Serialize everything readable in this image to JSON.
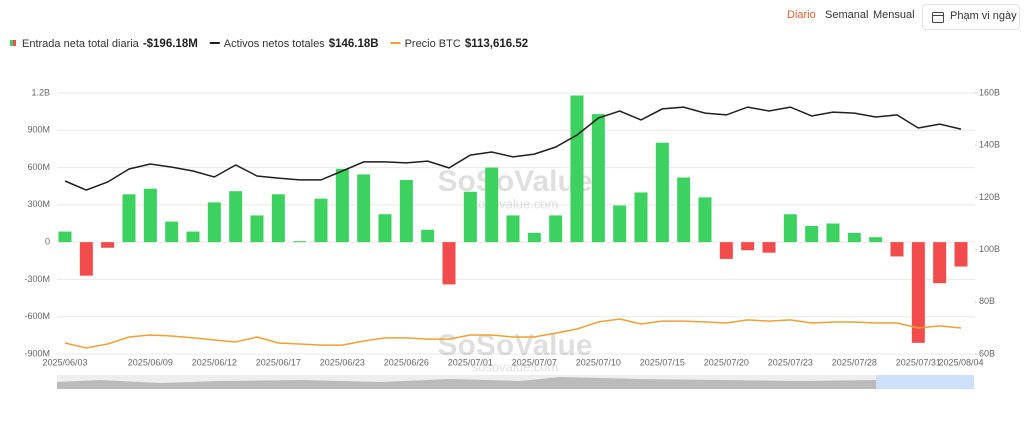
{
  "tabs": [
    "Diario",
    "Semanal",
    "Mensual"
  ],
  "date_range": "Phạm vi ngày",
  "watermark": {
    "brand": "SoSoValue",
    "site": "sosovalue.com"
  },
  "chart_data": {
    "type": "bar",
    "categories": [
      "2025/06/03",
      null,
      null,
      null,
      "2025/06/09",
      null,
      null,
      "2025/06/12",
      null,
      null,
      "2025/06/17",
      null,
      null,
      "2025/06/23",
      null,
      null,
      "2025/06/26",
      null,
      null,
      "2025/07/01",
      null,
      null,
      "2025/07/07",
      null,
      null,
      "2025/07/10",
      null,
      null,
      "2025/07/15",
      null,
      null,
      "2025/07/20",
      null,
      null,
      "2025/07/23",
      null,
      null,
      "2025/07/28",
      null,
      null,
      "2025/07/31",
      null,
      "2025/08/04"
    ],
    "ylim": [
      -900,
      1200
    ],
    "yticks": [
      {
        "value": 1200,
        "label": "1.2B"
      },
      {
        "value": 900,
        "label": "900M"
      },
      {
        "value": 600,
        "label": "600M"
      },
      {
        "value": 300,
        "label": "300M"
      },
      0,
      {
        "value": -300,
        "label": "-300M"
      },
      {
        "value": -600,
        "label": "-600M"
      },
      {
        "value": -900,
        "label": "-900M"
      }
    ],
    "y2lim": [
      60,
      160
    ],
    "y2ticks": [
      {
        "value": 160,
        "label": "160B"
      },
      {
        "value": 140,
        "label": "140B"
      },
      {
        "value": 120,
        "label": "120B"
      },
      {
        "value": 100,
        "label": "100B"
      },
      {
        "value": 80,
        "label": "80B"
      },
      {
        "value": 60,
        "label": "60B"
      }
    ],
    "y3lim": [
      95000,
      282000
    ],
    "grid": true,
    "series": [
      {
        "name": "Entrada neta total diaria",
        "value_label": "-$196.18M",
        "type": "bar",
        "color": "#3dd15f",
        "negative_color": "#f24b4b",
        "values": [
          85,
          -270,
          -45,
          385,
          430,
          165,
          85,
          320,
          410,
          215,
          385,
          8,
          350,
          590,
          545,
          225,
          500,
          100,
          -340,
          405,
          600,
          215,
          75,
          215,
          1180,
          1030,
          295,
          400,
          800,
          520,
          360,
          -135,
          -65,
          -85,
          225,
          130,
          150,
          75,
          40,
          -115,
          -810,
          -330,
          -196.18
        ]
      },
      {
        "name": "Activos netos totales",
        "value_label": "$146.18B",
        "type": "line",
        "axis": "y2",
        "color": "#1f1f1f",
        "values": [
          126.3,
          122.8,
          125.9,
          130.9,
          132.8,
          131.6,
          130.1,
          127.8,
          132.4,
          128.2,
          127.4,
          126.7,
          126.7,
          130.1,
          133.6,
          133.6,
          133.2,
          133.9,
          131.3,
          136.2,
          137.4,
          135.5,
          136.6,
          139.3,
          143.9,
          150.4,
          153.1,
          149.7,
          153.9,
          154.6,
          152.3,
          151.6,
          154.6,
          153.1,
          154.6,
          151.2,
          152.7,
          152.3,
          150.8,
          151.6,
          146.6,
          148.1,
          146.18
        ]
      },
      {
        "name": "Precio BTC",
        "value_label": "$113,616.52",
        "type": "line",
        "axis": "y3",
        "color": "#f0a030",
        "values": [
          102900,
          99300,
          102200,
          107200,
          108600,
          107900,
          106500,
          105000,
          103600,
          107200,
          102900,
          102200,
          101400,
          101400,
          104300,
          106500,
          106500,
          105700,
          105700,
          108600,
          108600,
          107200,
          107200,
          110000,
          112900,
          117900,
          120100,
          116500,
          118600,
          118600,
          117900,
          117200,
          119400,
          118600,
          119400,
          117200,
          117900,
          117900,
          117200,
          117200,
          113600,
          115100,
          113616.52
        ]
      }
    ]
  }
}
